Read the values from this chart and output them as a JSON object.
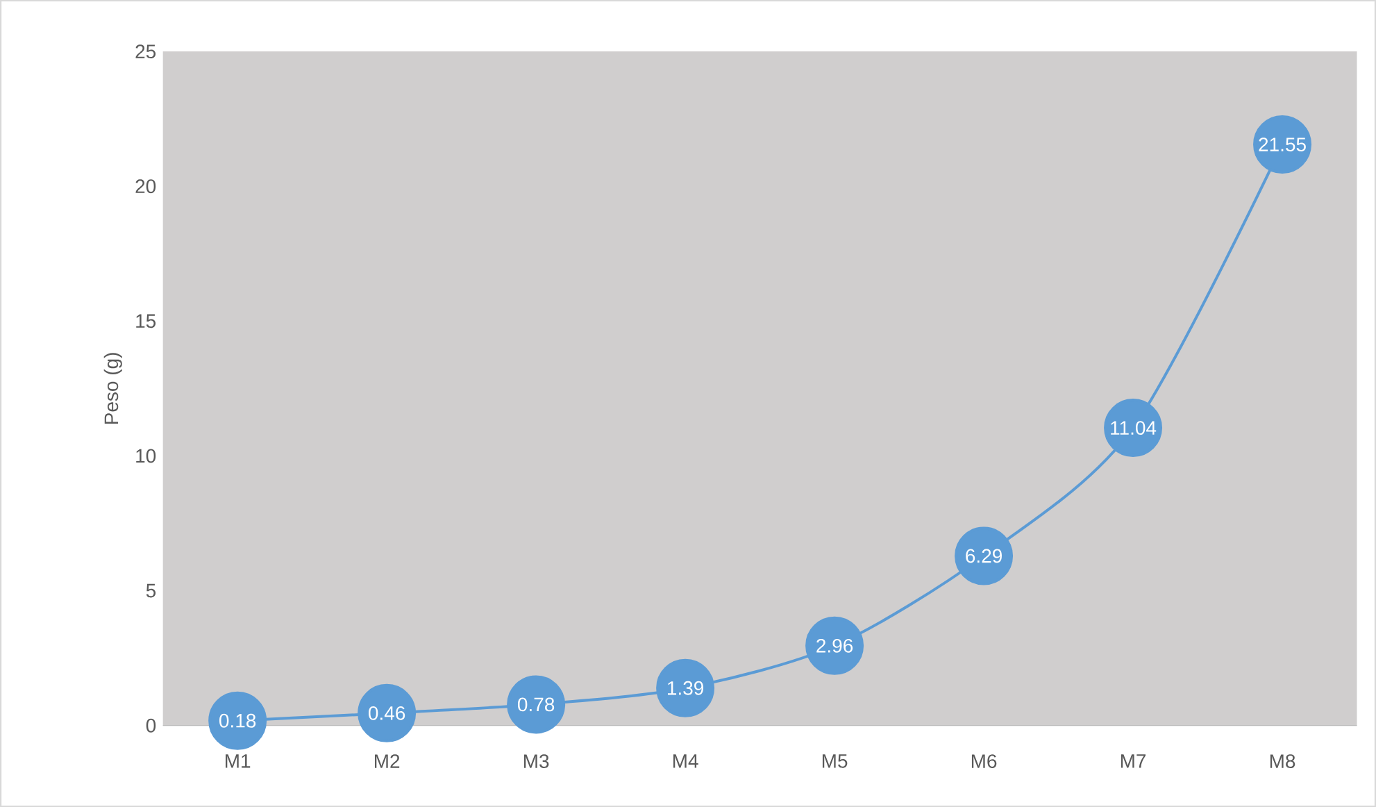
{
  "chart_data": {
    "type": "line",
    "ylabel": "Peso (g)",
    "categories": [
      "M1",
      "M2",
      "M3",
      "M4",
      "M5",
      "M6",
      "M7",
      "M8"
    ],
    "values": [
      0.18,
      0.46,
      0.78,
      1.39,
      2.96,
      6.29,
      11.04,
      21.55
    ],
    "color": "#5b9bd5",
    "ylim": [
      0,
      25
    ],
    "yticks": [
      0,
      5,
      10,
      15,
      20,
      25
    ],
    "grid": false,
    "marker": "circle",
    "line_style": "solid",
    "data_labels": true
  }
}
